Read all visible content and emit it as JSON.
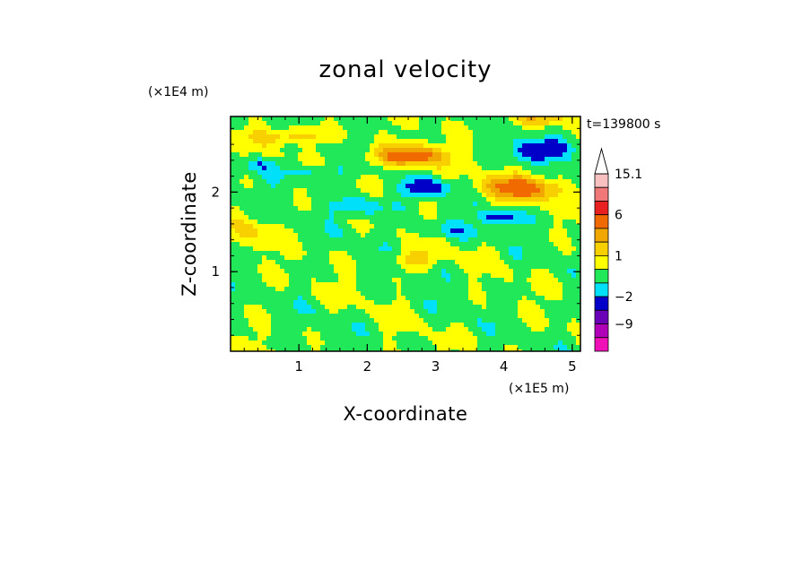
{
  "chart_data": {
    "type": "heatmap",
    "title": "zonal velocity",
    "xlabel": "X-coordinate",
    "ylabel": "Z-coordinate",
    "x_unit": "(×1E5 m)",
    "y_unit": "(×1E4 m)",
    "time_label": "t=139800 s",
    "x_ticks": [
      "1",
      "2",
      "3",
      "4",
      "5"
    ],
    "y_ticks": [
      "1",
      "2"
    ],
    "xlim": [
      0,
      5.12
    ],
    "ylim": [
      0,
      2.95
    ],
    "colorbar": {
      "ticks": [
        {
          "label": "15.1",
          "value": 15.1
        },
        {
          "label": "6",
          "value": 6
        },
        {
          "label": "1",
          "value": 1
        },
        {
          "label": "−2",
          "value": -2
        },
        {
          "label": "−9",
          "value": -9
        }
      ],
      "levels": [
        {
          "lo": 12,
          "hi": 15.1,
          "color": "#f8c0c0"
        },
        {
          "lo": 9,
          "hi": 12,
          "color": "#f07878"
        },
        {
          "lo": 6,
          "hi": 9,
          "color": "#e82020"
        },
        {
          "lo": 3,
          "hi": 6,
          "color": "#f06a00"
        },
        {
          "lo": 2,
          "hi": 3,
          "color": "#f0a800"
        },
        {
          "lo": 1,
          "hi": 2,
          "color": "#f8d000"
        },
        {
          "lo": 0,
          "hi": 1,
          "color": "#ffff00"
        },
        {
          "lo": -1,
          "hi": 0,
          "color": "#20e858"
        },
        {
          "lo": -2,
          "hi": -1,
          "color": "#00e0f8"
        },
        {
          "lo": -5,
          "hi": -2,
          "color": "#0000c8"
        },
        {
          "lo": -9,
          "hi": -5,
          "color": "#6a00b8"
        },
        {
          "lo": -12,
          "hi": -9,
          "color": "#b000b8"
        },
        {
          "lo": -15,
          "hi": -12,
          "color": "#f010b8"
        }
      ]
    },
    "features": [
      {
        "x": 2.6,
        "z": 2.45,
        "value": 4.5,
        "rx": 0.5,
        "rz": 0.13
      },
      {
        "x": 4.25,
        "z": 2.05,
        "value": 4.0,
        "rx": 0.55,
        "rz": 0.15
      },
      {
        "x": 2.7,
        "z": 1.15,
        "value": 1.8,
        "rx": 0.35,
        "rz": 0.12
      },
      {
        "x": 4.5,
        "z": 2.52,
        "value": -4.0,
        "rx": 0.35,
        "rz": 0.12
      },
      {
        "x": 2.85,
        "z": 2.05,
        "value": -3.5,
        "rx": 0.3,
        "rz": 0.09
      },
      {
        "x": 3.95,
        "z": 1.68,
        "value": -3.0,
        "rx": 0.25,
        "rz": 0.07
      },
      {
        "x": 1.95,
        "z": 1.82,
        "value": -1.6,
        "rx": 0.45,
        "rz": 0.14
      },
      {
        "x": 1.2,
        "z": 2.25,
        "value": -1.4,
        "rx": 0.5,
        "rz": 0.1
      },
      {
        "x": 0.45,
        "z": 2.35,
        "value": -1.5,
        "rx": 0.25,
        "rz": 0.09
      },
      {
        "x": 3.25,
        "z": 1.52,
        "value": -1.2,
        "rx": 0.55,
        "rz": 0.1
      },
      {
        "x": 0.9,
        "z": 2.7,
        "value": 2.0,
        "rx": 0.6,
        "rz": 0.1
      },
      {
        "x": 4.4,
        "z": 2.9,
        "value": 2.0,
        "rx": 0.45,
        "rz": 0.08
      },
      {
        "x": 0.3,
        "z": 1.5,
        "value": 1.2,
        "rx": 0.3,
        "rz": 0.2
      }
    ]
  }
}
